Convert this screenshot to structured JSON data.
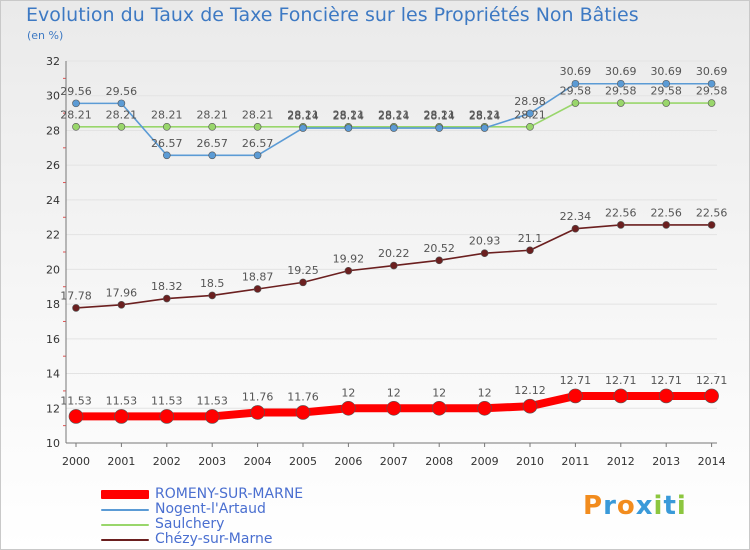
{
  "title": "Evolution du Taux de Taxe Foncière sur les Propriétés Non Bâties",
  "subtitle": "(en %)",
  "logo": {
    "text": "Proxiti",
    "colors": [
      "#f28c1e",
      "#3a9ad9",
      "#f28c1e",
      "#3a9ad9",
      "#8cc63f",
      "#3a9ad9",
      "#8cc63f"
    ]
  },
  "chart_data": {
    "type": "line",
    "title": "Evolution du Taux de Taxe Foncière sur les Propriétés Non Bâties",
    "ylabel": "(en %)",
    "xlabel": "",
    "ylim": [
      10,
      32
    ],
    "yticks": [
      10,
      12,
      14,
      16,
      18,
      20,
      22,
      24,
      26,
      28,
      30,
      32
    ],
    "grid": "horizontal",
    "categories": [
      "2000",
      "2001",
      "2002",
      "2003",
      "2004",
      "2005",
      "2006",
      "2007",
      "2008",
      "2009",
      "2010",
      "2011",
      "2012",
      "2013",
      "2014"
    ],
    "series": [
      {
        "name": "Chézy-sur-Marne",
        "color": "#6b1f1f",
        "labels": [
          "17.78",
          "17.96",
          "18.32",
          "18.5",
          "18.87",
          "19.25",
          "19.92",
          "20.22",
          "20.52",
          "20.93",
          "21.1",
          "22.34",
          "22.56",
          "22.56",
          "22.56"
        ],
        "values": [
          17.78,
          17.96,
          18.32,
          18.5,
          18.87,
          19.25,
          19.92,
          20.22,
          20.52,
          20.93,
          21.1,
          22.34,
          22.56,
          22.56,
          22.56
        ]
      },
      {
        "name": "Saulchery",
        "color": "#99d66b",
        "labels": [
          "28.21",
          "28.21",
          "28.21",
          "28.21",
          "28.21",
          "28.21",
          "28.21",
          "28.21",
          "28.21",
          "28.21",
          "28.21",
          "29.58",
          "29.58",
          "29.58",
          "29.58"
        ],
        "values": [
          28.21,
          28.21,
          28.21,
          28.21,
          28.21,
          28.21,
          28.21,
          28.21,
          28.21,
          28.21,
          28.21,
          29.58,
          29.58,
          29.58,
          29.58
        ]
      },
      {
        "name": "Nogent-l'Artaud",
        "color": "#5b9bd5",
        "labels": [
          "29.56",
          "29.56",
          "26.57",
          "26.57",
          "26.57",
          "28.14",
          "28.14",
          "28.14",
          "28.14",
          "28.14",
          "28.98",
          "30.69",
          "30.69",
          "30.69",
          "30.69"
        ],
        "values": [
          29.56,
          29.56,
          26.57,
          26.57,
          26.57,
          28.14,
          28.14,
          28.14,
          28.14,
          28.14,
          28.98,
          30.69,
          30.69,
          30.69,
          30.69
        ]
      },
      {
        "name": "ROMENY-SUR-MARNE",
        "color": "#ff0000",
        "labels": [
          "11.53",
          "11.53",
          "11.53",
          "11.53",
          "11.76",
          "11.76",
          "12",
          "12",
          "12",
          "12",
          "12.12",
          "12.71",
          "12.71",
          "12.71",
          "12.71"
        ],
        "values": [
          11.53,
          11.53,
          11.53,
          11.53,
          11.76,
          11.76,
          12,
          12,
          12,
          12,
          12.12,
          12.71,
          12.71,
          12.71,
          12.71
        ]
      }
    ],
    "legend": [
      "ROMENY-SUR-MARNE",
      "Nogent-l'Artaud",
      "Saulchery",
      "Chézy-sur-Marne"
    ]
  }
}
